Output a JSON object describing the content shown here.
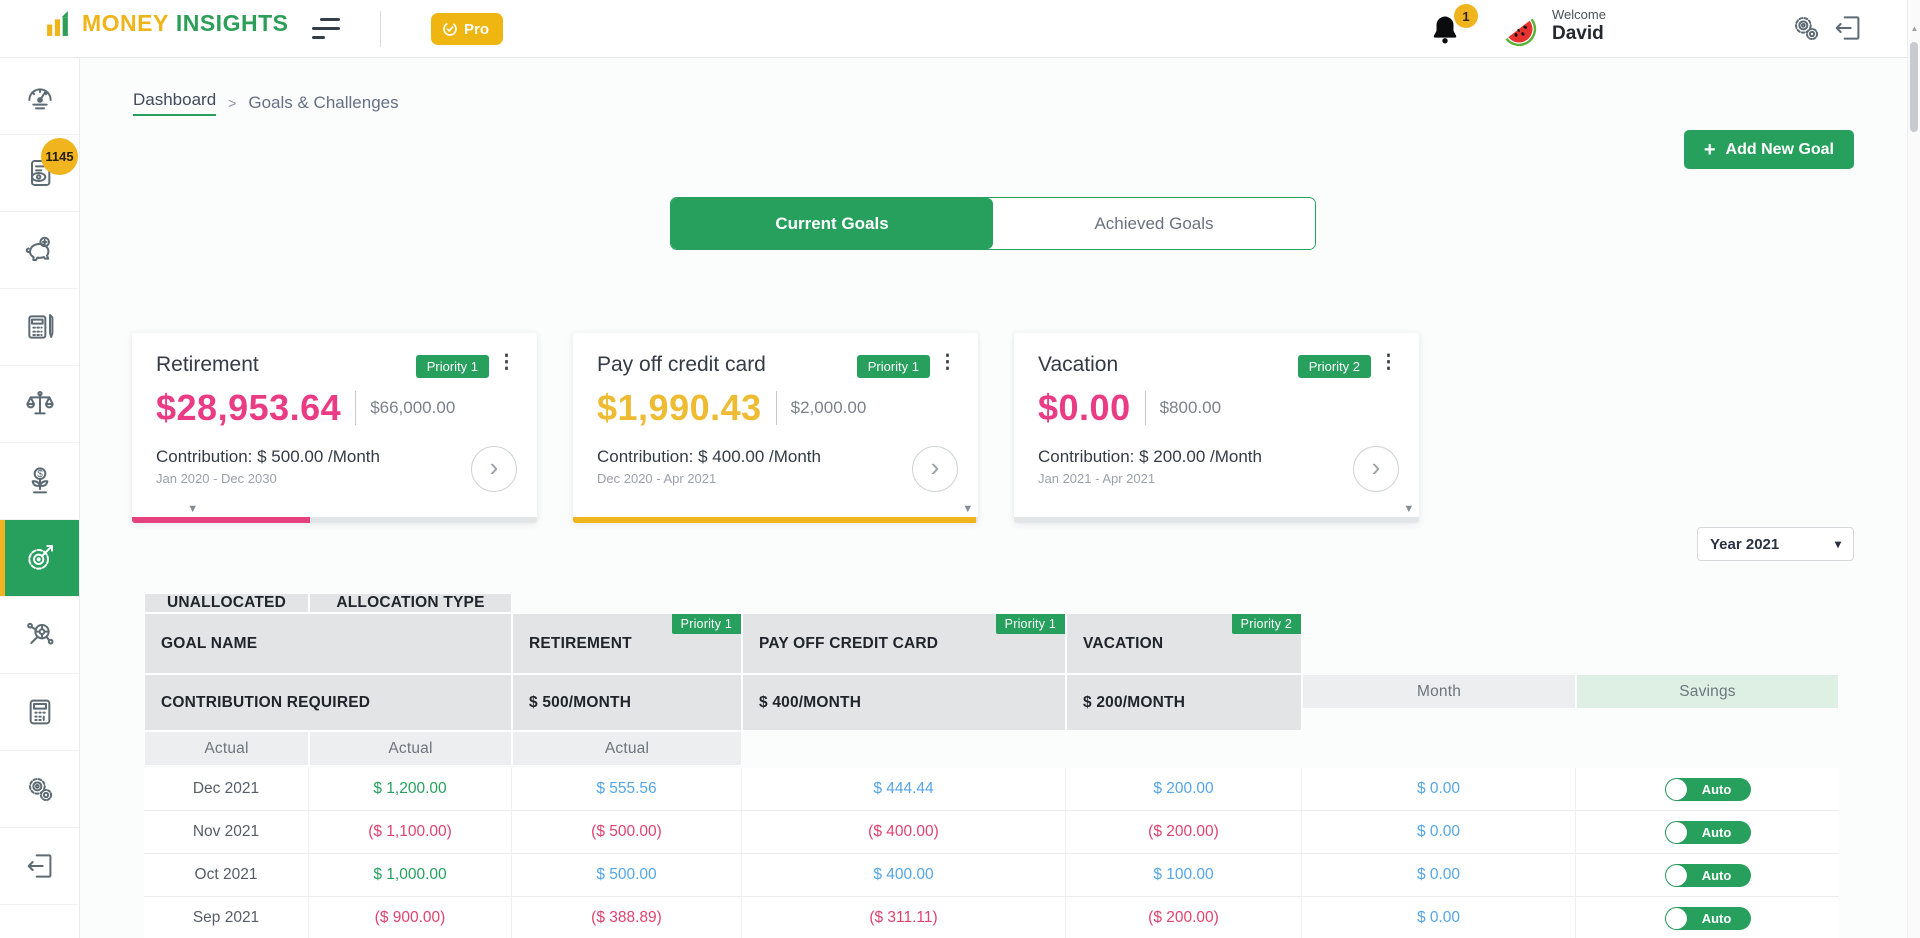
{
  "header": {
    "brand_first": "MONEY",
    "brand_second": "INSIGHTS",
    "pro_label": "Pro",
    "notification_count": "1",
    "welcome_label": "Welcome",
    "user_name": "David"
  },
  "sidebar": {
    "badge_count": "1145",
    "active_item": "goals-target",
    "icon_names": [
      "dashboard-gauge",
      "reports-document-eye",
      "piggy-bank-savings",
      "budget-calculator-pen",
      "balance-scale",
      "investment-growth",
      "goals-target",
      "analysis-search",
      "calculator",
      "settings-gears",
      "logout"
    ]
  },
  "icons": {
    "plus": "+",
    "kebab": "⋮",
    "chevron_right": "›",
    "caret_down": "▾",
    "breadcrumb_separator": ">",
    "scroll_up_arrow": "▲",
    "progress_marker": "▼"
  },
  "colors": {
    "accent_green": "#27a05e",
    "gold": "#f0b41e",
    "pink": "#ea3c85",
    "blue": "#55a6e8"
  },
  "breadcrumb": {
    "home": "Dashboard",
    "current": "Goals & Challenges"
  },
  "toolbar": {
    "add_goal_label": "Add New Goal"
  },
  "tabs": [
    {
      "label": "Current Goals",
      "active": true
    },
    {
      "label": "Achieved Goals",
      "active": false
    }
  ],
  "cards": [
    {
      "title": "Retirement",
      "priority": "Priority 1",
      "amount": "$28,953.64",
      "amount_tone": "pink",
      "target": "$66,000.00",
      "contribution": "Contribution: $ 500.00 /Month",
      "date_range": "Jan 2020 - Dec 2030",
      "progress_pct": 43.9,
      "marker_pct": 15,
      "bar_tone": "pink"
    },
    {
      "title": "Pay off credit card",
      "priority": "Priority 1",
      "amount": "$1,990.43",
      "amount_tone": "gold",
      "target": "$2,000.00",
      "contribution": "Contribution: $ 400.00 /Month",
      "date_range": "Dec 2020 - Apr 2021",
      "progress_pct": 99.5,
      "marker_pct": 97.5,
      "bar_tone": "gold"
    },
    {
      "title": "Vacation",
      "priority": "Priority 2",
      "amount": "$0.00",
      "amount_tone": "pink",
      "target": "$800.00",
      "contribution": "Contribution: $ 200.00 /Month",
      "date_range": "Jan 2021 - Apr 2021",
      "progress_pct": 0,
      "marker_pct": 97.5,
      "bar_tone": "pink"
    }
  ],
  "year_filter": {
    "value": "Year 2021"
  },
  "table": {
    "headers": {
      "goal_name": "GOAL NAME",
      "contribution_required": "CONTRIBUTION REQUIRED",
      "unallocated": "UNALLOCATED",
      "allocation_type": "ALLOCATION TYPE",
      "month": "Month",
      "savings": "Savings",
      "actual": "Actual"
    },
    "goal_columns": [
      {
        "name": "RETIREMENT",
        "priority": "Priority 1",
        "rate": "$ 500/MONTH"
      },
      {
        "name": "PAY OFF CREDIT CARD",
        "priority": "Priority 1",
        "rate": "$ 400/MONTH"
      },
      {
        "name": "VACATION",
        "priority": "Priority 2",
        "rate": "$ 200/MONTH"
      }
    ],
    "rows": [
      {
        "month": "Dec 2021",
        "savings": {
          "text": "$ 1,200.00",
          "tone": "green"
        },
        "retirement": {
          "text": "$ 555.56",
          "tone": "blue"
        },
        "payoff": {
          "text": "$ 444.44",
          "tone": "blue"
        },
        "vacation": {
          "text": "$ 200.00",
          "tone": "blue"
        },
        "unallocated": {
          "text": "$ 0.00",
          "tone": "blue"
        },
        "toggle": "Auto"
      },
      {
        "month": "Nov 2021",
        "savings": {
          "text": "($ 1,100.00)",
          "tone": "pink"
        },
        "retirement": {
          "text": "($ 500.00)",
          "tone": "pink"
        },
        "payoff": {
          "text": "($ 400.00)",
          "tone": "pink"
        },
        "vacation": {
          "text": "($ 200.00)",
          "tone": "pink"
        },
        "unallocated": {
          "text": "$ 0.00",
          "tone": "blue"
        },
        "toggle": "Auto"
      },
      {
        "month": "Oct 2021",
        "savings": {
          "text": "$ 1,000.00",
          "tone": "green"
        },
        "retirement": {
          "text": "$ 500.00",
          "tone": "blue"
        },
        "payoff": {
          "text": "$ 400.00",
          "tone": "blue"
        },
        "vacation": {
          "text": "$ 100.00",
          "tone": "blue"
        },
        "unallocated": {
          "text": "$ 0.00",
          "tone": "blue"
        },
        "toggle": "Auto"
      },
      {
        "month": "Sep 2021",
        "savings": {
          "text": "($ 900.00)",
          "tone": "pink"
        },
        "retirement": {
          "text": "($ 388.89)",
          "tone": "pink"
        },
        "payoff": {
          "text": "($ 311.11)",
          "tone": "pink"
        },
        "vacation": {
          "text": "($ 200.00)",
          "tone": "pink"
        },
        "unallocated": {
          "text": "$ 0.00",
          "tone": "blue"
        },
        "toggle": "Auto"
      }
    ]
  }
}
